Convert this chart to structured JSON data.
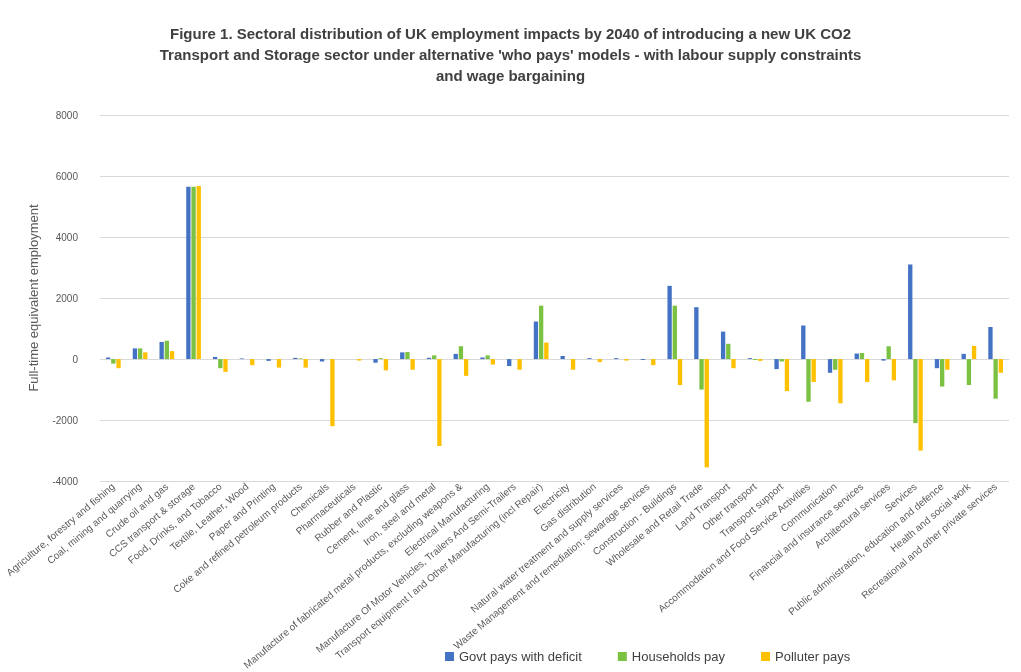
{
  "chart_data": {
    "type": "bar",
    "title": "Figure 1. Sectoral distribution of UK employment impacts by 2040 of introducing a new UK CO2\nTransport and Storage sector under alternative 'who pays' models - with labour supply constraints\nand wage bargaining",
    "ylabel": "Full-time equivalent employment",
    "categories": [
      "Agriculture, forestry and fishing",
      "Coal, mining and quarrying",
      "Crude oil and gas",
      "CCS transport & storage",
      "Food, Drinks, and Tobacco",
      "Textile, Leather, Wood",
      "Paper and Printing",
      "Coke and refined petroleum products",
      "Chemicals",
      "Pharmaceuticals",
      "Rubber and Plastic",
      "Cement, lime and glass",
      "Iron, steel and metal",
      "Manufacture of fabricated metal products, excluding weapons &",
      "Electrical Manufacturing",
      "Manufacture Of Motor Vehicles, Trailers And Semi-Trailers",
      "Transport equipment l and Other Manufacturing (incl Repair)",
      "Electricity",
      "Gas distribution",
      "Natural water treatment and supply services",
      "Waste Management and remediation; sewarage services",
      "Construction - Buildings",
      "Wholesale and Retail Trade",
      "Land Transport",
      "Other transport",
      "Transport support",
      "Accommodation and Food Service Activities",
      "Communication",
      "Financial and insurance services",
      "Architectural services",
      "Services",
      "Public administration, education and defence",
      "Health and social work",
      "Recreational and other private services"
    ],
    "series": [
      {
        "name": "Govt pays with deficit",
        "color": "#4472c4",
        "values": [
          50,
          350,
          560,
          5650,
          70,
          20,
          -60,
          40,
          -80,
          0,
          -120,
          220,
          40,
          170,
          50,
          -230,
          1230,
          100,
          30,
          30,
          -30,
          2400,
          1700,
          900,
          30,
          -330,
          1100,
          -450,
          180,
          -50,
          3100,
          -300,
          170,
          1050
        ]
      },
      {
        "name": "Households pay",
        "color": "#7cc242",
        "values": [
          -150,
          350,
          600,
          5650,
          -300,
          0,
          0,
          20,
          0,
          0,
          30,
          230,
          120,
          420,
          120,
          0,
          1750,
          0,
          0,
          0,
          0,
          1750,
          -1000,
          500,
          -30,
          -80,
          -1400,
          -350,
          200,
          420,
          -2100,
          -900,
          -850,
          -1300
        ]
      },
      {
        "name": "Polluter pays",
        "color": "#ffc000",
        "values": [
          -300,
          220,
          260,
          5670,
          -420,
          -200,
          -280,
          -280,
          -2200,
          -50,
          -370,
          -350,
          -2850,
          -550,
          -180,
          -350,
          540,
          -350,
          -100,
          -50,
          -200,
          -850,
          -3550,
          -300,
          -60,
          -1050,
          -750,
          -1450,
          -750,
          -700,
          -3000,
          -350,
          430,
          -450
        ]
      }
    ],
    "ylim": [
      -4000,
      8000
    ],
    "yticks": [
      -4000,
      -2000,
      0,
      2000,
      4000,
      6000,
      8000
    ],
    "grid": "y",
    "legend": "bottom"
  }
}
